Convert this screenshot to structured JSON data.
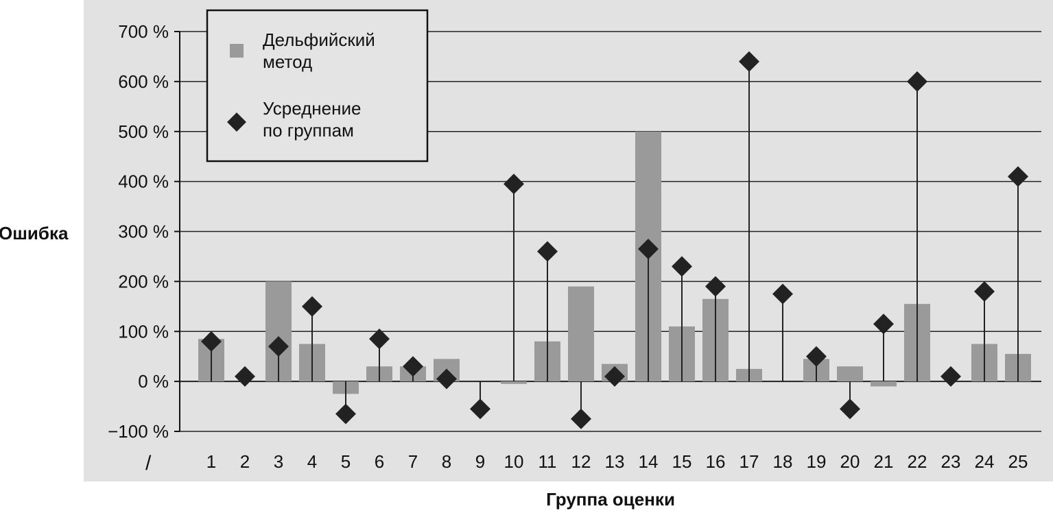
{
  "chart_data": {
    "type": "bar",
    "categories": [
      "1",
      "2",
      "3",
      "4",
      "5",
      "6",
      "7",
      "8",
      "9",
      "10",
      "11",
      "12",
      "13",
      "14",
      "15",
      "16",
      "17",
      "18",
      "19",
      "20",
      "21",
      "22",
      "23",
      "24",
      "25"
    ],
    "ylim": [
      -100,
      700
    ],
    "yticks": [
      "700 %",
      "600 %",
      "500 %",
      "400 %",
      "300 %",
      "200 %",
      "100 %",
      "0 %",
      "−100 %"
    ],
    "ytick_values": [
      700,
      600,
      500,
      400,
      300,
      200,
      100,
      0,
      -100
    ],
    "ylabel": "Ошибка",
    "xlabel": "Группа оценки",
    "grid": true,
    "legend_position": "top-left",
    "series": [
      {
        "name": "Дельфийский метод",
        "kind": "bar",
        "color": "#9a9a9a",
        "values": [
          85,
          0,
          200,
          75,
          -25,
          30,
          30,
          45,
          0,
          -5,
          80,
          190,
          35,
          500,
          110,
          165,
          25,
          0,
          45,
          30,
          -10,
          155,
          0,
          75,
          55
        ]
      },
      {
        "name": "Усреднение по группам",
        "kind": "marker",
        "color": "#222222",
        "values": [
          80,
          10,
          70,
          150,
          -65,
          85,
          30,
          5,
          -55,
          395,
          260,
          -75,
          10,
          265,
          230,
          190,
          640,
          175,
          50,
          -55,
          115,
          600,
          10,
          180,
          410
        ]
      }
    ],
    "legend": {
      "delphi_line1": "Дельфийский",
      "delphi_line2": "метод",
      "avg_line1": "Усреднение",
      "avg_line2": "по группам"
    },
    "corner_mark": "/"
  }
}
